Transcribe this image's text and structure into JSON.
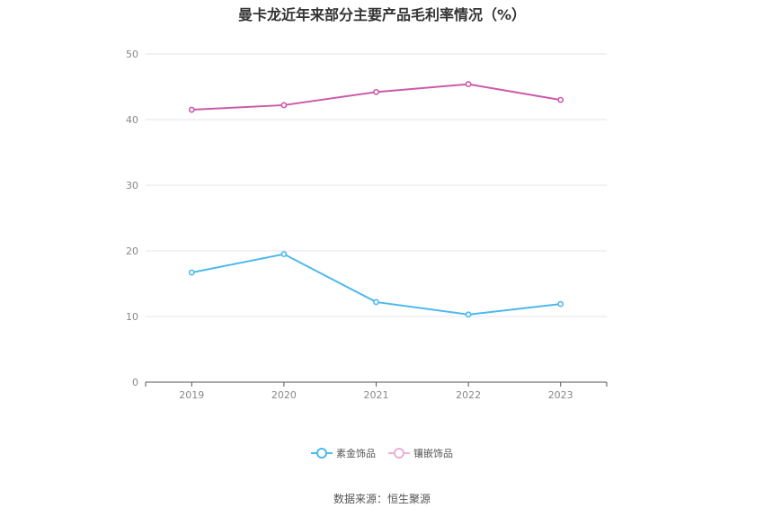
{
  "chart_data": {
    "type": "line",
    "title": "曼卡龙近年来部分主要产品毛利率情况（%）",
    "categories": [
      "2019",
      "2020",
      "2021",
      "2022",
      "2023"
    ],
    "series": [
      {
        "name": "素金饰品",
        "color": "#4cb9ec",
        "values": [
          16.7,
          19.5,
          12.2,
          10.3,
          11.9
        ]
      },
      {
        "name": "镶嵌饰品",
        "color": "#cc5aaa",
        "values": [
          41.5,
          42.2,
          44.2,
          45.4,
          43.0
        ]
      }
    ],
    "y_ticks": [
      "0",
      "10",
      "20",
      "30",
      "40",
      "50"
    ],
    "ylim": [
      0,
      50
    ],
    "grid": true,
    "legend_position": "bottom-center"
  },
  "source": "数据来源：恒生聚源"
}
